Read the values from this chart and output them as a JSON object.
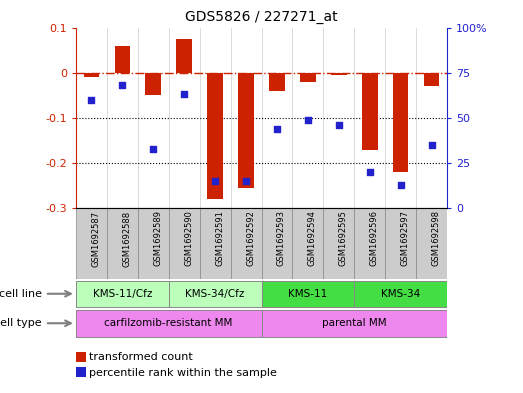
{
  "title": "GDS5826 / 227271_at",
  "samples": [
    "GSM1692587",
    "GSM1692588",
    "GSM1692589",
    "GSM1692590",
    "GSM1692591",
    "GSM1692592",
    "GSM1692593",
    "GSM1692594",
    "GSM1692595",
    "GSM1692596",
    "GSM1692597",
    "GSM1692598"
  ],
  "transformed_count": [
    -0.01,
    0.06,
    -0.05,
    0.075,
    -0.28,
    -0.255,
    -0.04,
    -0.02,
    -0.005,
    -0.17,
    -0.22,
    -0.03
  ],
  "percentile_rank": [
    60,
    68,
    33,
    63,
    15,
    15,
    44,
    49,
    46,
    20,
    13,
    35
  ],
  "ylim_left": [
    -0.3,
    0.1
  ],
  "ylim_right": [
    0,
    100
  ],
  "bar_color": "#cc2200",
  "scatter_color": "#2222cc",
  "ref_line_color": "#cc2200",
  "dotted_lines": [
    -0.1,
    -0.2
  ],
  "left_ticks": [
    -0.3,
    -0.2,
    -0.1,
    0,
    0.1
  ],
  "right_ticks": [
    0,
    25,
    50,
    75,
    100
  ],
  "right_tick_labels": [
    "0",
    "25",
    "50",
    "75",
    "100%"
  ],
  "cell_lines": [
    {
      "label": "KMS-11/Cfz",
      "start": 0,
      "end": 3,
      "color": "#bbffbb"
    },
    {
      "label": "KMS-34/Cfz",
      "start": 3,
      "end": 6,
      "color": "#bbffbb"
    },
    {
      "label": "KMS-11",
      "start": 6,
      "end": 9,
      "color": "#44dd44"
    },
    {
      "label": "KMS-34",
      "start": 9,
      "end": 12,
      "color": "#44dd44"
    }
  ],
  "cell_types": [
    {
      "label": "carfilzomib-resistant MM",
      "start": 0,
      "end": 6,
      "color": "#ee88ee"
    },
    {
      "label": "parental MM",
      "start": 6,
      "end": 12,
      "color": "#ee88ee"
    }
  ],
  "legend_bar_label": "transformed count",
  "legend_scatter_label": "percentile rank within the sample",
  "sample_box_color": "#cccccc",
  "bar_width": 0.5,
  "left_label_color": "#cc2200",
  "right_label_color": "#2222cc"
}
